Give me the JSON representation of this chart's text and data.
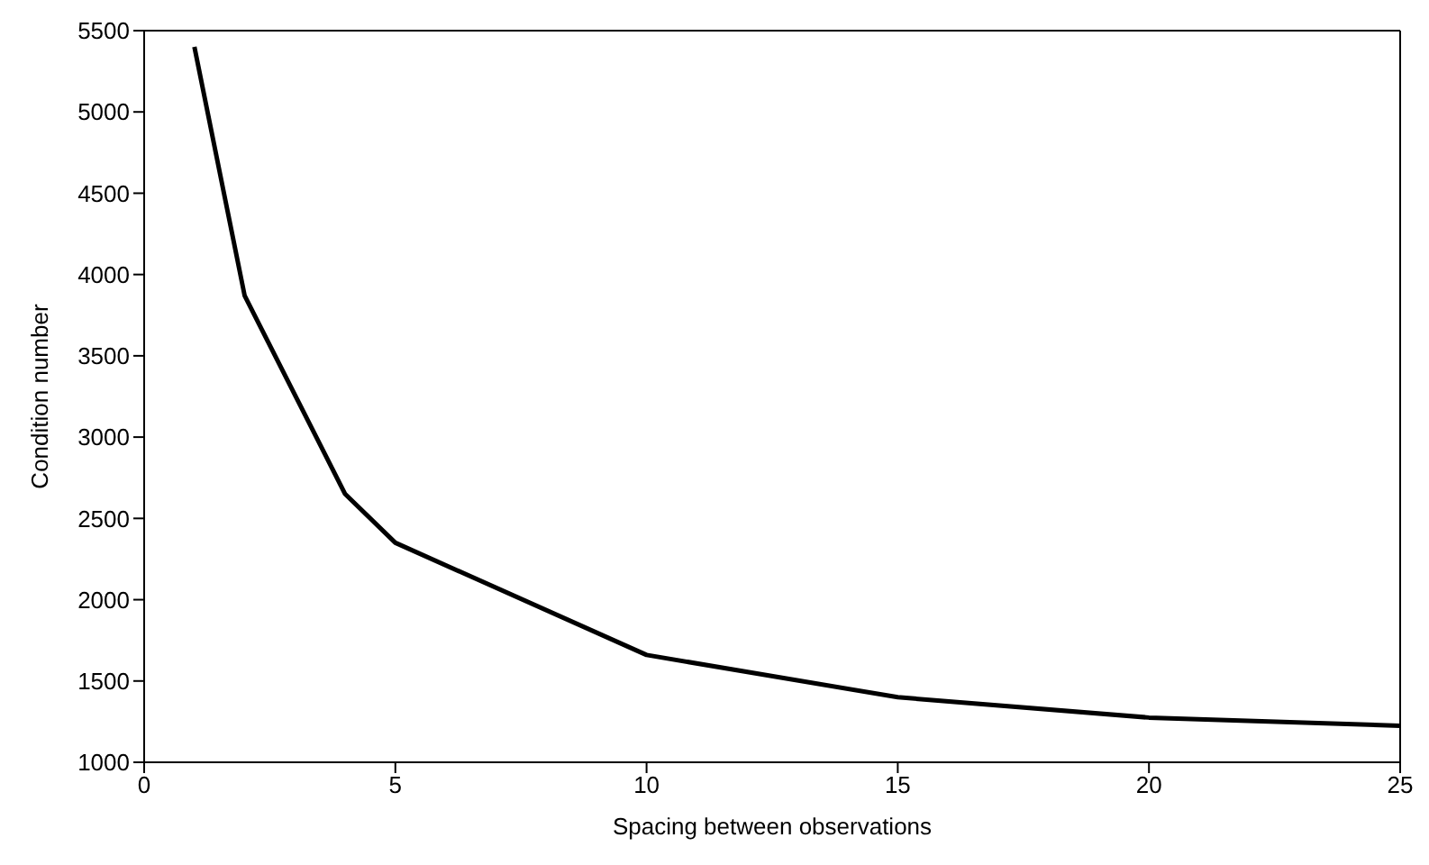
{
  "chart_data": {
    "type": "line",
    "xlabel": "Spacing between observations",
    "ylabel": "Condition number",
    "x": [
      1,
      2,
      4,
      5,
      10,
      15,
      20,
      25
    ],
    "series": [
      {
        "color": "#000000",
        "values": [
          5400,
          3870,
          2650,
          2350,
          1660,
          1400,
          1275,
          1225
        ]
      }
    ],
    "xlim": [
      0,
      25
    ],
    "xticks": [
      0,
      5,
      10,
      15,
      20,
      25
    ],
    "ylim": [
      1000,
      5500
    ],
    "yticks": [
      1000,
      1500,
      2000,
      2500,
      3000,
      3500,
      4000,
      4500,
      5000,
      5500
    ],
    "grid": false,
    "legend": false,
    "marker": "none",
    "line_style": "solid"
  }
}
